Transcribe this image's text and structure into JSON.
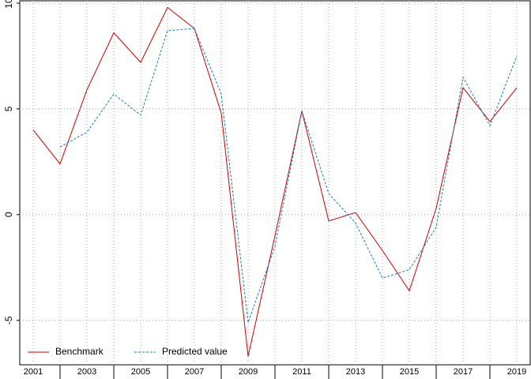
{
  "chart_data": {
    "type": "line",
    "x": [
      2001,
      2002,
      2003,
      2004,
      2005,
      2006,
      2007,
      2008,
      2009,
      2010,
      2011,
      2012,
      2013,
      2014,
      2015,
      2016,
      2017,
      2018,
      2019
    ],
    "series": [
      {
        "name": "Benchmark",
        "color": "#cc0000",
        "dash": false,
        "values": [
          4.0,
          2.4,
          5.9,
          8.6,
          7.2,
          9.8,
          8.8,
          4.8,
          -6.7,
          -1.0,
          4.9,
          -0.3,
          0.1,
          -1.7,
          -3.6,
          0.3,
          6.0,
          4.4,
          6.0
        ]
      },
      {
        "name": "Predicted value",
        "color": "#1f78c8",
        "dash": true,
        "values": [
          null,
          3.2,
          3.9,
          5.7,
          4.7,
          8.7,
          8.8,
          5.7,
          -5.1,
          -1.5,
          4.9,
          1.0,
          -0.4,
          -3.0,
          -2.6,
          -0.6,
          6.5,
          4.2,
          7.5
        ]
      }
    ],
    "xlim": [
      2000.5,
      2019.5
    ],
    "xticks": [
      2001,
      2003,
      2005,
      2007,
      2009,
      2011,
      2013,
      2015,
      2017,
      2019
    ],
    "xminor": [
      2002,
      2004,
      2006,
      2008,
      2010,
      2012,
      2014,
      2016,
      2018
    ],
    "ylim": [
      -7.1,
      10
    ],
    "yticks": [
      -5,
      0,
      5,
      10
    ],
    "grid": true,
    "legend": "bottom-left"
  }
}
